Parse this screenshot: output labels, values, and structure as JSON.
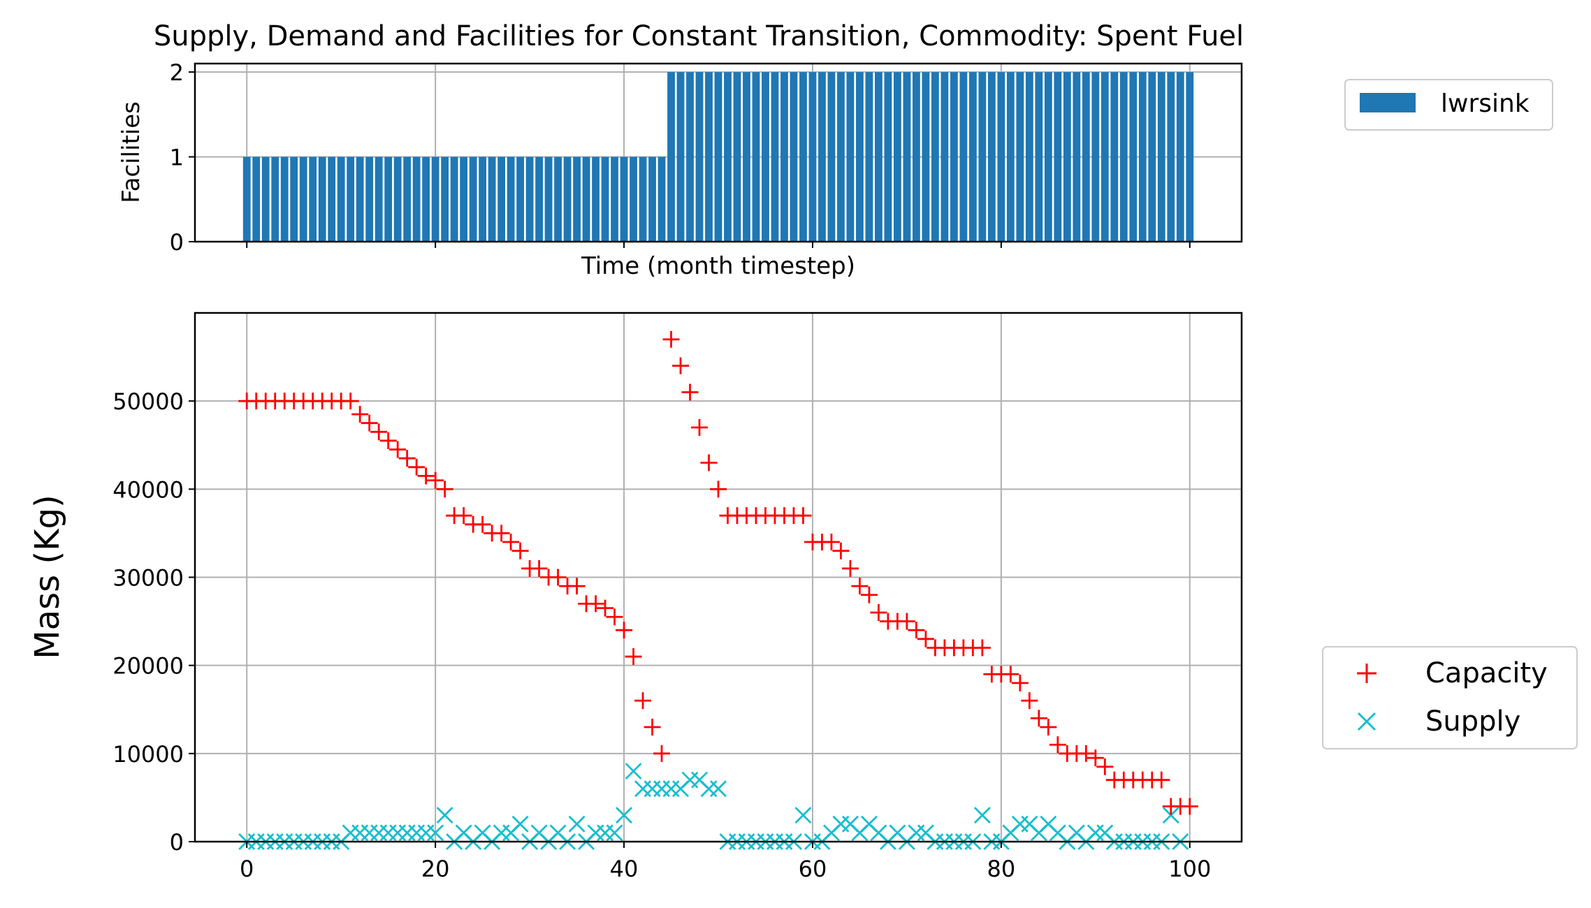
{
  "chart_data": [
    {
      "type": "bar",
      "title": "Supply, Demand and Facilities for Constant Transition, Commodity:  Spent Fuel",
      "xlabel": "Time (month timestep)",
      "ylabel": "Facilities",
      "xlim": [
        -5.5,
        105.5
      ],
      "ylim": [
        0,
        2.1
      ],
      "xticks": [
        0,
        20,
        40,
        60,
        80,
        100
      ],
      "yticks": [
        0,
        1,
        2
      ],
      "grid": true,
      "legend_position": "upper right, outside plot",
      "color": "#1f77b4",
      "series": [
        {
          "name": "lwrsink",
          "x": [
            0,
            1,
            2,
            3,
            4,
            5,
            6,
            7,
            8,
            9,
            10,
            11,
            12,
            13,
            14,
            15,
            16,
            17,
            18,
            19,
            20,
            21,
            22,
            23,
            24,
            25,
            26,
            27,
            28,
            29,
            30,
            31,
            32,
            33,
            34,
            35,
            36,
            37,
            38,
            39,
            40,
            41,
            42,
            43,
            44,
            45,
            46,
            47,
            48,
            49,
            50,
            51,
            52,
            53,
            54,
            55,
            56,
            57,
            58,
            59,
            60,
            61,
            62,
            63,
            64,
            65,
            66,
            67,
            68,
            69,
            70,
            71,
            72,
            73,
            74,
            75,
            76,
            77,
            78,
            79,
            80,
            81,
            82,
            83,
            84,
            85,
            86,
            87,
            88,
            89,
            90,
            91,
            92,
            93,
            94,
            95,
            96,
            97,
            98,
            99,
            100
          ],
          "values": [
            1,
            1,
            1,
            1,
            1,
            1,
            1,
            1,
            1,
            1,
            1,
            1,
            1,
            1,
            1,
            1,
            1,
            1,
            1,
            1,
            1,
            1,
            1,
            1,
            1,
            1,
            1,
            1,
            1,
            1,
            1,
            1,
            1,
            1,
            1,
            1,
            1,
            1,
            1,
            1,
            1,
            1,
            1,
            1,
            1,
            2,
            2,
            2,
            2,
            2,
            2,
            2,
            2,
            2,
            2,
            2,
            2,
            2,
            2,
            2,
            2,
            2,
            2,
            2,
            2,
            2,
            2,
            2,
            2,
            2,
            2,
            2,
            2,
            2,
            2,
            2,
            2,
            2,
            2,
            2,
            2,
            2,
            2,
            2,
            2,
            2,
            2,
            2,
            2,
            2,
            2,
            2,
            2,
            2,
            2,
            2,
            2,
            2,
            2,
            2,
            2
          ]
        }
      ]
    },
    {
      "type": "scatter",
      "xlabel": "",
      "ylabel": "Mass (Kg)",
      "xlim": [
        -5.5,
        105.5
      ],
      "ylim": [
        0,
        60000
      ],
      "xticks": [
        0,
        20,
        40,
        60,
        80,
        100
      ],
      "yticks": [
        0,
        10000,
        20000,
        30000,
        40000,
        50000
      ],
      "grid": true,
      "legend_position": "lower right, outside plot",
      "series": [
        {
          "name": "Capacity",
          "marker": "+",
          "color": "#ff0000",
          "x": [
            0,
            1,
            2,
            3,
            4,
            5,
            6,
            7,
            8,
            9,
            10,
            11,
            12,
            13,
            14,
            15,
            16,
            17,
            18,
            19,
            20,
            21,
            22,
            23,
            24,
            25,
            26,
            27,
            28,
            29,
            30,
            31,
            32,
            33,
            34,
            35,
            36,
            37,
            38,
            39,
            40,
            41,
            42,
            43,
            44,
            45,
            46,
            47,
            48,
            49,
            50,
            51,
            52,
            53,
            54,
            55,
            56,
            57,
            58,
            59,
            60,
            61,
            62,
            63,
            64,
            65,
            66,
            67,
            68,
            69,
            70,
            71,
            72,
            73,
            74,
            75,
            76,
            77,
            78,
            79,
            80,
            81,
            82,
            83,
            84,
            85,
            86,
            87,
            88,
            89,
            90,
            91,
            92,
            93,
            94,
            95,
            96,
            97,
            98,
            99,
            100
          ],
          "y": [
            50000,
            50000,
            50000,
            50000,
            50000,
            50000,
            50000,
            50000,
            50000,
            50000,
            50000,
            50000,
            48500,
            47500,
            46500,
            45500,
            44500,
            43500,
            42500,
            41500,
            41000,
            40000,
            37000,
            37000,
            36000,
            36000,
            35000,
            35000,
            34000,
            33000,
            31000,
            31000,
            30000,
            30000,
            29000,
            29000,
            27000,
            27000,
            26500,
            25500,
            24000,
            21000,
            16000,
            13000,
            10000,
            57000,
            54000,
            51000,
            47000,
            43000,
            40000,
            37000,
            37000,
            37000,
            37000,
            37000,
            37000,
            37000,
            37000,
            37000,
            34000,
            34000,
            34000,
            33000,
            31000,
            29000,
            28000,
            26000,
            25000,
            25000,
            25000,
            24000,
            23000,
            22000,
            22000,
            22000,
            22000,
            22000,
            22000,
            19000,
            19000,
            19000,
            18000,
            16000,
            14000,
            13000,
            11000,
            10000,
            10000,
            10000,
            9500,
            8500,
            7000,
            7000,
            7000,
            7000,
            7000,
            7000,
            4000,
            4000,
            4000
          ]
        },
        {
          "name": "Supply",
          "marker": "x",
          "color": "#17becf",
          "x": [
            0,
            1,
            2,
            3,
            4,
            5,
            6,
            7,
            8,
            9,
            10,
            11,
            12,
            13,
            14,
            15,
            16,
            17,
            18,
            19,
            20,
            21,
            22,
            23,
            24,
            25,
            26,
            27,
            28,
            29,
            30,
            31,
            32,
            33,
            34,
            35,
            36,
            37,
            38,
            39,
            40,
            41,
            42,
            43,
            44,
            45,
            46,
            47,
            48,
            49,
            50,
            51,
            52,
            53,
            54,
            55,
            56,
            57,
            58,
            59,
            60,
            61,
            62,
            63,
            64,
            65,
            66,
            67,
            68,
            69,
            70,
            71,
            72,
            73,
            74,
            75,
            76,
            77,
            78,
            79,
            80,
            81,
            82,
            83,
            84,
            85,
            86,
            87,
            88,
            89,
            90,
            91,
            92,
            93,
            94,
            95,
            96,
            97,
            98,
            99
          ],
          "y": [
            0,
            0,
            0,
            0,
            0,
            0,
            0,
            0,
            0,
            0,
            0,
            1000,
            1000,
            1000,
            1000,
            1000,
            1000,
            1000,
            1000,
            1000,
            1000,
            3000,
            0,
            1000,
            0,
            1000,
            0,
            1000,
            1000,
            2000,
            0,
            1000,
            0,
            1000,
            0,
            2000,
            0,
            1000,
            1000,
            1000,
            3000,
            8000,
            6000,
            6000,
            6000,
            6000,
            6000,
            7000,
            7000,
            6000,
            6000,
            0,
            0,
            0,
            0,
            0,
            0,
            0,
            0,
            3000,
            0,
            0,
            1000,
            2000,
            2000,
            1000,
            2000,
            1000,
            0,
            1000,
            0,
            1000,
            1000,
            0,
            0,
            0,
            0,
            0,
            3000,
            0,
            0,
            1000,
            2000,
            2000,
            1000,
            2000,
            1000,
            0,
            1000,
            0,
            1000,
            1000,
            0,
            0,
            0,
            0,
            0,
            0,
            3000,
            0
          ]
        }
      ]
    }
  ],
  "ui": {
    "ytick_labels_top": [
      "0",
      "1",
      "2"
    ],
    "ytick_labels_bottom": [
      "0",
      "10000",
      "20000",
      "30000",
      "40000",
      "50000"
    ],
    "xtick_labels_bottom": [
      "0",
      "20",
      "40",
      "60",
      "80",
      "100"
    ]
  }
}
